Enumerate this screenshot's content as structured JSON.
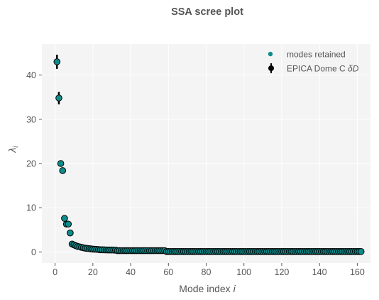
{
  "chart_data": {
    "type": "scatter",
    "title": "SSA scree plot",
    "xlabel": "Mode index",
    "xlabel_var": "i",
    "ylabel": "λ",
    "ylabel_sub": "i",
    "xlim": [
      -7,
      167
    ],
    "ylim": [
      -2.5,
      47
    ],
    "xticks": [
      0,
      20,
      40,
      60,
      80,
      100,
      120,
      140,
      160
    ],
    "yticks": [
      0,
      10,
      20,
      30,
      40
    ],
    "grid": true,
    "legend_placement": "top-right",
    "legend": [
      {
        "label": "modes retained",
        "label_var": "",
        "marker": "dot",
        "color": "#0e8c8c"
      },
      {
        "label": "EPICA Dome C ",
        "label_var": "δD",
        "marker": "errorbar",
        "color": "#000000"
      }
    ],
    "colors": {
      "retained": "#0e8c8c",
      "errorbar": "#000000",
      "face": "#f4f4f4",
      "grid": "#ffffff",
      "text": "#555555"
    },
    "series": [
      {
        "name": "EPICA Dome C δD",
        "x_start": 1,
        "values": [
          43.0,
          34.8,
          20.0,
          18.4,
          7.6,
          6.3,
          6.3,
          4.3,
          1.8,
          1.6,
          1.4,
          1.25,
          1.15,
          1.05,
          0.95,
          0.85,
          0.8,
          0.75,
          0.7,
          0.65,
          0.62,
          0.6,
          0.55,
          0.5,
          0.5,
          0.48,
          0.46,
          0.45,
          0.45,
          0.44,
          0.43,
          0.42,
          0.3,
          0.3,
          0.3,
          0.3,
          0.3,
          0.3,
          0.3,
          0.3,
          0.3,
          0.3,
          0.3,
          0.3,
          0.3,
          0.3,
          0.3,
          0.3,
          0.3,
          0.3,
          0.3,
          0.3,
          0.3,
          0.3,
          0.3,
          0.3,
          0.3,
          0.3,
          0.1,
          0.1,
          0.1,
          0.1,
          0.1,
          0.1,
          0.1,
          0.1,
          0.1,
          0.1,
          0.1,
          0.1,
          0.1,
          0.1,
          0.1,
          0.1,
          0.1,
          0.1,
          0.1,
          0.1,
          0.1,
          0.1,
          0.1,
          0.1,
          0.1,
          0.1,
          0.1,
          0.1,
          0.1,
          0.1,
          0.1,
          0.1,
          0.1,
          0.1,
          0.1,
          0.1,
          0.1,
          0.1,
          0.1,
          0.1,
          0.1,
          0.1,
          0.1,
          0.1,
          0.1,
          0.1,
          0.1,
          0.1,
          0.1,
          0.1,
          0.1,
          0.1,
          0.1,
          0.1,
          0.1,
          0.1,
          0.1,
          0.1,
          0.1,
          0.1,
          0.1,
          0.1,
          0.1,
          0.1,
          0.1,
          0.1,
          0.1,
          0.1,
          0.1,
          0.1,
          0.1,
          0.1,
          0.1,
          0.1,
          0.1,
          0.1,
          0.1,
          0.1,
          0.1,
          0.1,
          0.1,
          0.1,
          0.1,
          0.1,
          0.1,
          0.1,
          0.1,
          0.1,
          0.1,
          0.1,
          0.1,
          0.1,
          0.1,
          0.1,
          0.1,
          0.1,
          0.1,
          0.1,
          0.1,
          0.1,
          0.1,
          0.1,
          0.1,
          0.1
        ],
        "errors": {
          "1": 1.6,
          "2": 1.4
        }
      }
    ]
  }
}
